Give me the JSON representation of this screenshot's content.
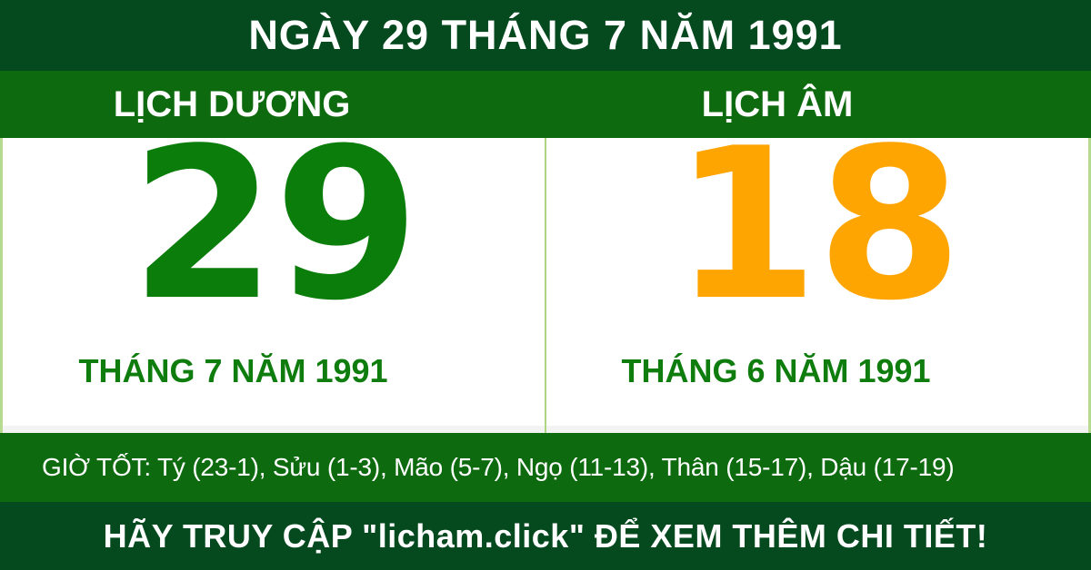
{
  "header": {
    "title": "NGÀY 29 THÁNG 7 NĂM 1991"
  },
  "columns": {
    "solar": {
      "label": "LỊCH DƯƠNG",
      "day": "29",
      "month_year": "THÁNG 7 NĂM 1991"
    },
    "lunar": {
      "label": "LỊCH ÂM",
      "day": "18",
      "month_year": "THÁNG 6 NĂM 1991"
    }
  },
  "good_hours": {
    "text": "GIỜ TỐT: Tý (23-1), Sửu (1-3), Mão (5-7), Ngọ (11-13), Thân (15-17), Dậu (17-19)"
  },
  "footer": {
    "text": "HÃY TRUY CẬP \"licham.click\" ĐỂ XEM THÊM CHI TIẾT!"
  },
  "colors": {
    "dark_green_banner": "#05491f",
    "band_green": "#0e6a0e",
    "solar_day": "#0b7d0b",
    "lunar_day": "#ffa502",
    "month_text": "#0e7d0e",
    "divider_light_green": "#aed581",
    "edge_border": "#b7da91"
  }
}
